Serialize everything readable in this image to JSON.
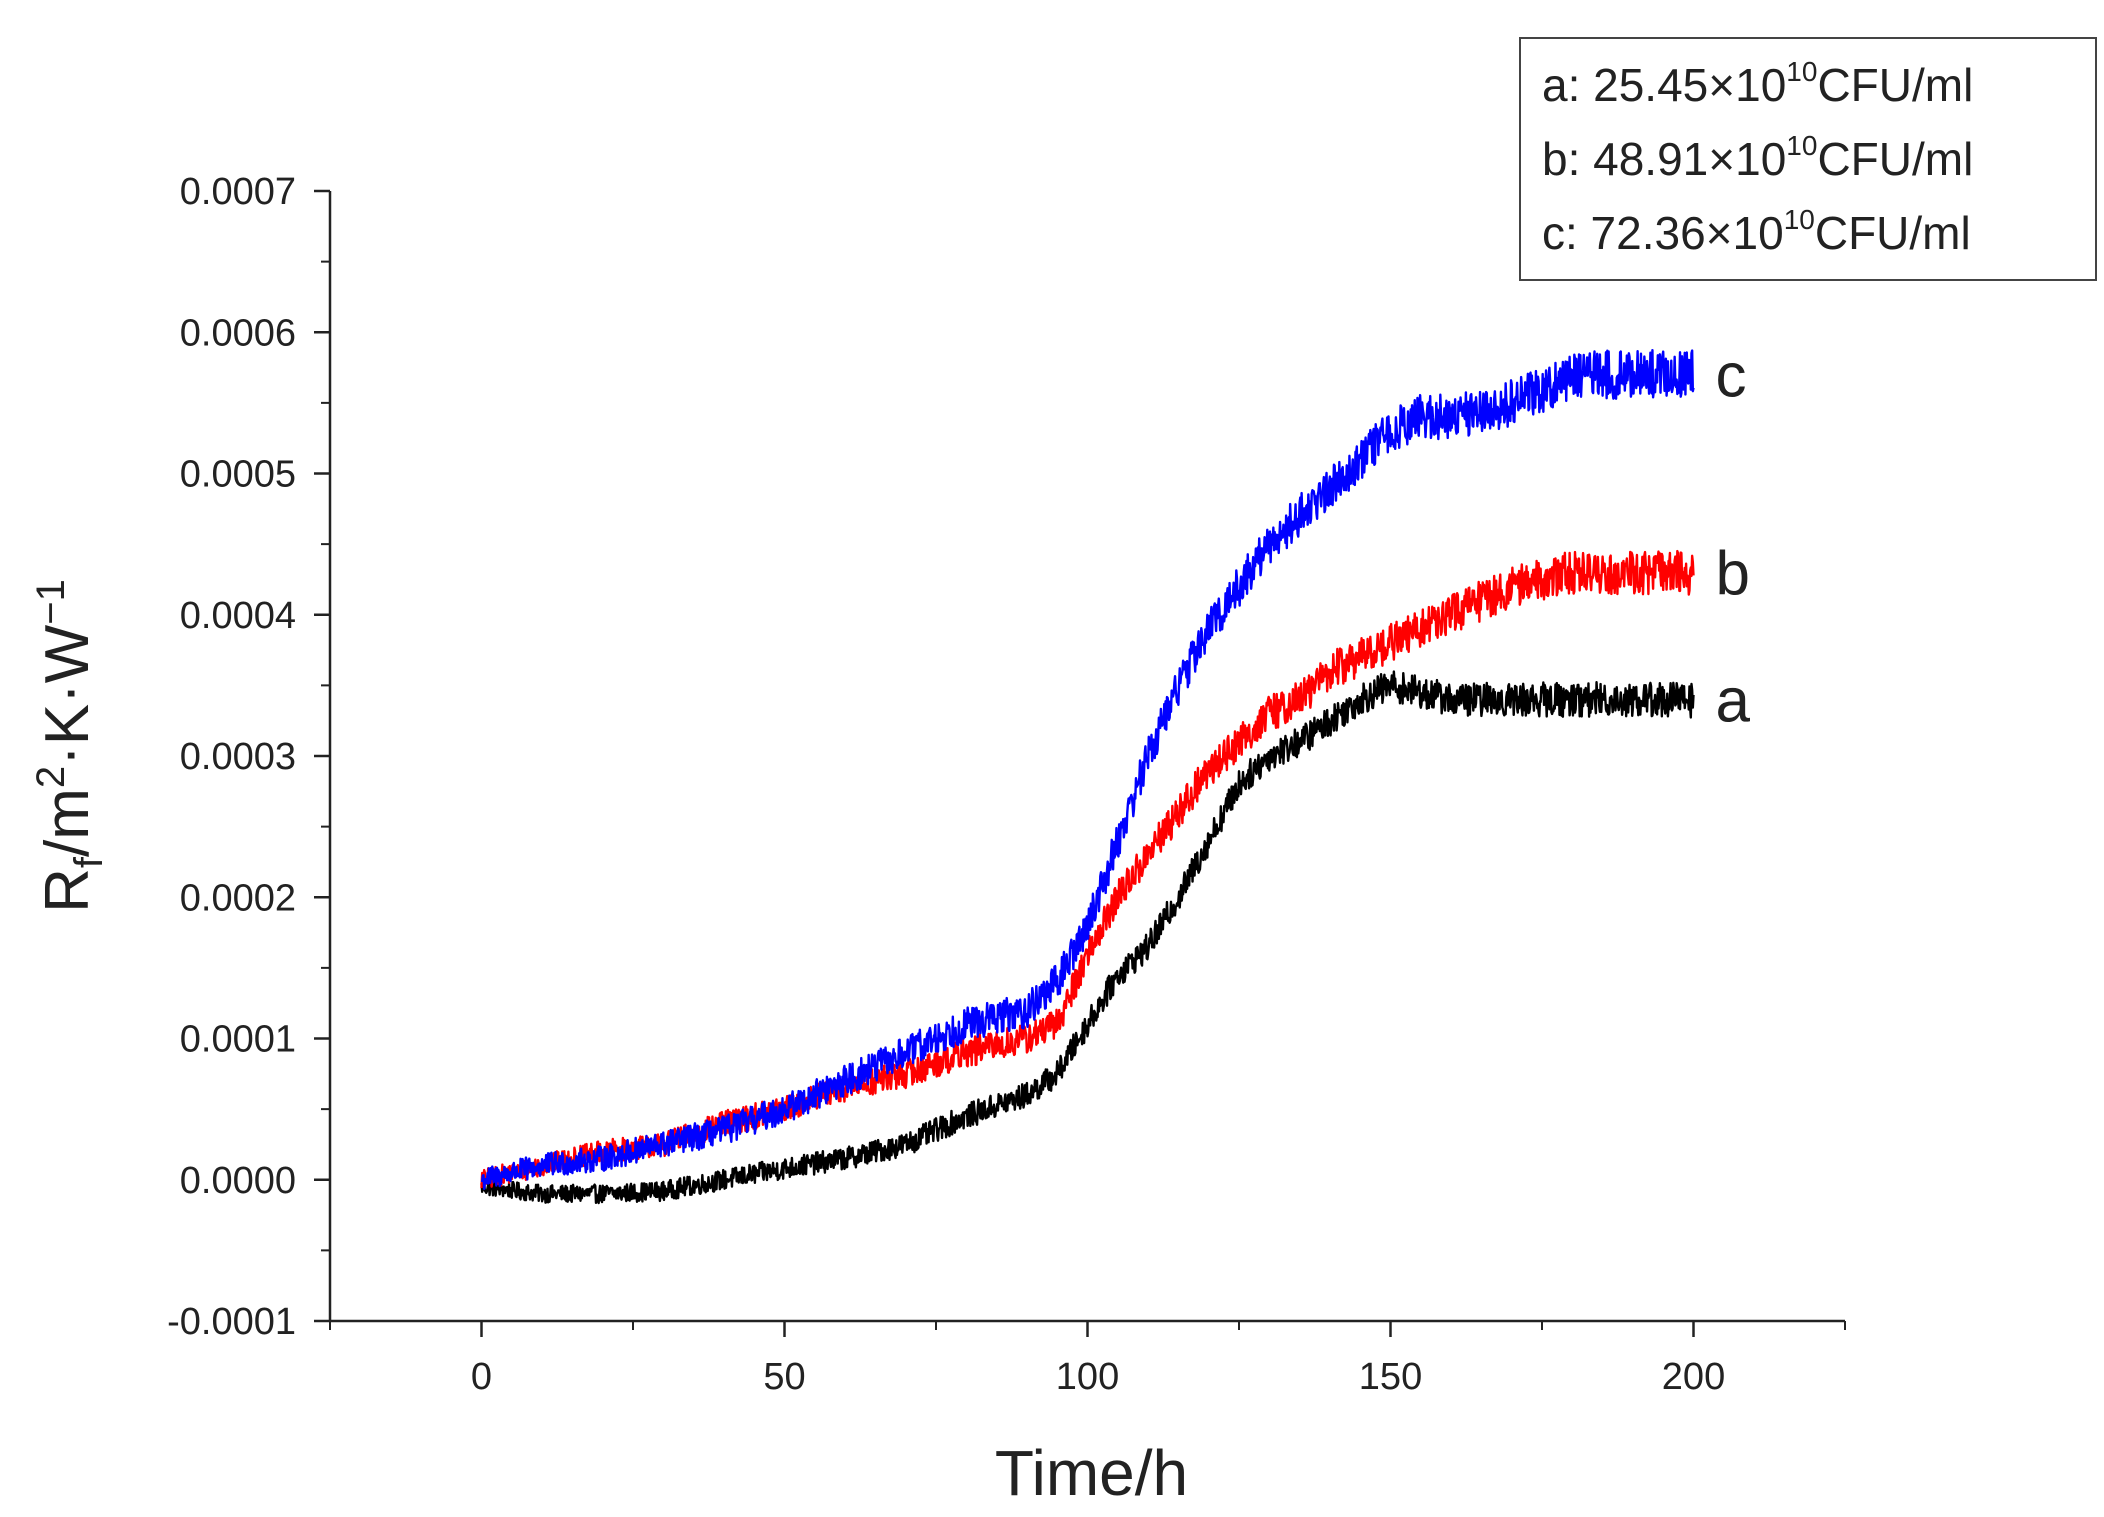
{
  "chart_data": {
    "type": "line",
    "title": "",
    "xlabel": "Time/h",
    "ylabel": {
      "parts": [
        "R",
        "f",
        "/m",
        "2",
        "·K·W",
        "−1"
      ]
    },
    "xlim": [
      -25,
      225
    ],
    "ylim": [
      -0.0001,
      0.0007
    ],
    "x_ticks": [
      {
        "value": 0,
        "label": "0"
      },
      {
        "value": 50,
        "label": "50"
      },
      {
        "value": 100,
        "label": "100"
      },
      {
        "value": 150,
        "label": "150"
      },
      {
        "value": 200,
        "label": "200"
      }
    ],
    "y_ticks": [
      {
        "value": -0.0001,
        "label": "-0.0001"
      },
      {
        "value": 0.0,
        "label": "0.0000"
      },
      {
        "value": 0.0001,
        "label": "0.0001"
      },
      {
        "value": 0.0002,
        "label": "0.0002"
      },
      {
        "value": 0.0003,
        "label": "0.0003"
      },
      {
        "value": 0.0004,
        "label": "0.0004"
      },
      {
        "value": 0.0005,
        "label": "0.0005"
      },
      {
        "value": 0.0006,
        "label": "0.0006"
      },
      {
        "value": 0.0007,
        "label": "0.0007"
      }
    ],
    "grid": false,
    "legend_position": "top-right",
    "series": [
      {
        "name": "a",
        "end_label": "a",
        "legend_prefix": "a: 25.45×10",
        "legend_exp": "10",
        "legend_suffix": "CFU/ml",
        "color": "#000000",
        "noise": 1.3e-05,
        "x": [
          0,
          10,
          20,
          30,
          40,
          50,
          60,
          70,
          80,
          90,
          95,
          100,
          105,
          110,
          115,
          120,
          125,
          130,
          135,
          140,
          145,
          150,
          155,
          160,
          170,
          180,
          190,
          200
        ],
        "y": [
          -5e-06,
          -1e-05,
          -1e-05,
          -8e-06,
          0.0,
          8e-06,
          1.5e-05,
          2.5e-05,
          4.5e-05,
          6e-05,
          7.5e-05,
          0.00011,
          0.000145,
          0.000165,
          0.0002,
          0.00024,
          0.00028,
          0.0003,
          0.00031,
          0.000325,
          0.00034,
          0.00035,
          0.000345,
          0.00034,
          0.00034,
          0.00034,
          0.00034,
          0.00034
        ]
      },
      {
        "name": "b",
        "end_label": "b",
        "legend_prefix": "b: 48.91×10",
        "legend_exp": "10",
        "legend_suffix": "CFU/ml",
        "color": "#ff0000",
        "noise": 1.6e-05,
        "x": [
          0,
          10,
          20,
          30,
          40,
          50,
          60,
          70,
          80,
          90,
          95,
          100,
          105,
          110,
          115,
          120,
          125,
          130,
          135,
          140,
          145,
          150,
          155,
          160,
          170,
          180,
          190,
          200
        ],
        "y": [
          0.0,
          1e-05,
          2e-05,
          2.5e-05,
          4e-05,
          5e-05,
          6.5e-05,
          7.5e-05,
          9e-05,
          0.0001,
          0.00011,
          0.00016,
          0.0002,
          0.00023,
          0.00026,
          0.00029,
          0.00031,
          0.00033,
          0.00034,
          0.00036,
          0.00037,
          0.00038,
          0.00039,
          0.0004,
          0.00042,
          0.00043,
          0.00043,
          0.00043
        ]
      },
      {
        "name": "c",
        "end_label": "c",
        "legend_prefix": "c: 72.36×10",
        "legend_exp": "10",
        "legend_suffix": "CFU/ml",
        "color": "#0000ff",
        "noise": 1.8e-05,
        "x": [
          0,
          10,
          20,
          30,
          40,
          50,
          60,
          70,
          80,
          90,
          95,
          100,
          105,
          110,
          115,
          120,
          125,
          130,
          135,
          140,
          145,
          150,
          155,
          160,
          170,
          180,
          190,
          200
        ],
        "y": [
          0.0,
          1e-05,
          1.5e-05,
          2.5e-05,
          3.5e-05,
          5e-05,
          7e-05,
          9e-05,
          0.00011,
          0.00012,
          0.00014,
          0.00018,
          0.00024,
          0.0003,
          0.00035,
          0.00039,
          0.00042,
          0.00045,
          0.00047,
          0.00049,
          0.00051,
          0.00053,
          0.00054,
          0.00054,
          0.00055,
          0.00057,
          0.00057,
          0.00057
        ]
      }
    ]
  }
}
